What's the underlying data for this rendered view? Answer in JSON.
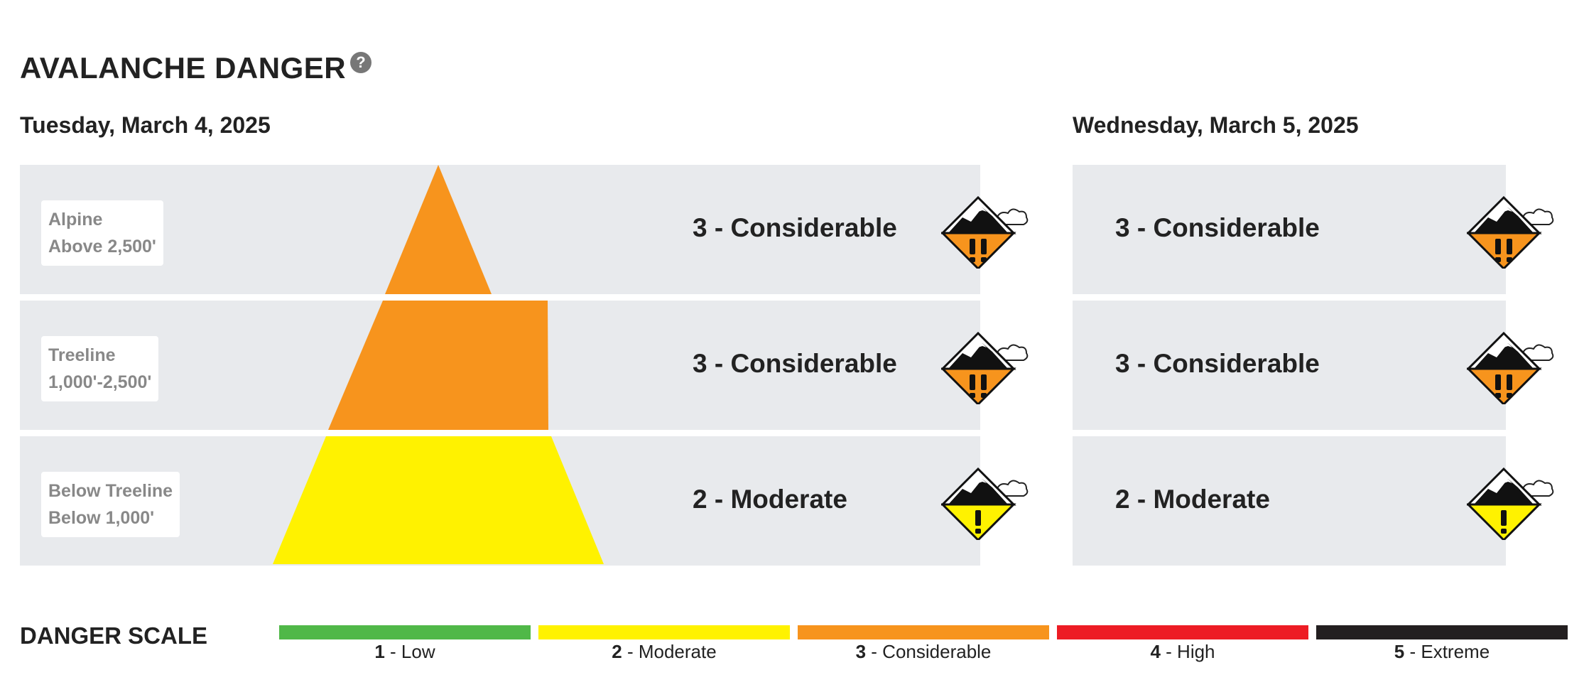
{
  "header": {
    "title": "AVALANCHE DANGER",
    "help_icon": "question-circle-icon",
    "help_glyph": "?"
  },
  "days": [
    {
      "date": "Tuesday, March 4, 2025",
      "rows": [
        {
          "zone": "Alpine",
          "elevation": "Above 2,500'",
          "rating": "3 - Considerable",
          "level": 3,
          "color": "#f7941d"
        },
        {
          "zone": "Treeline",
          "elevation": "1,000'-2,500'",
          "rating": "3 - Considerable",
          "level": 3,
          "color": "#f7941d"
        },
        {
          "zone": "Below Treeline",
          "elevation": "Below 1,000'",
          "rating": "2 - Moderate",
          "level": 2,
          "color": "#fff200"
        }
      ]
    },
    {
      "date": "Wednesday, March 5, 2025",
      "rows": [
        {
          "rating": "3 - Considerable",
          "level": 3,
          "color": "#f7941d"
        },
        {
          "rating": "3 - Considerable",
          "level": 3,
          "color": "#f7941d"
        },
        {
          "rating": "2 - Moderate",
          "level": 2,
          "color": "#fff200"
        }
      ]
    }
  ],
  "danger_scale": {
    "title": "DANGER SCALE",
    "levels": [
      {
        "num": "1",
        "name": " - Low",
        "color": "#50b848"
      },
      {
        "num": "2",
        "name": " - Moderate",
        "color": "#fff200"
      },
      {
        "num": "3",
        "name": " - Considerable",
        "color": "#f7941d"
      },
      {
        "num": "4",
        "name": " - High",
        "color": "#ed1c24"
      },
      {
        "num": "5",
        "name": " - Extreme",
        "color": "#231f20"
      }
    ]
  }
}
